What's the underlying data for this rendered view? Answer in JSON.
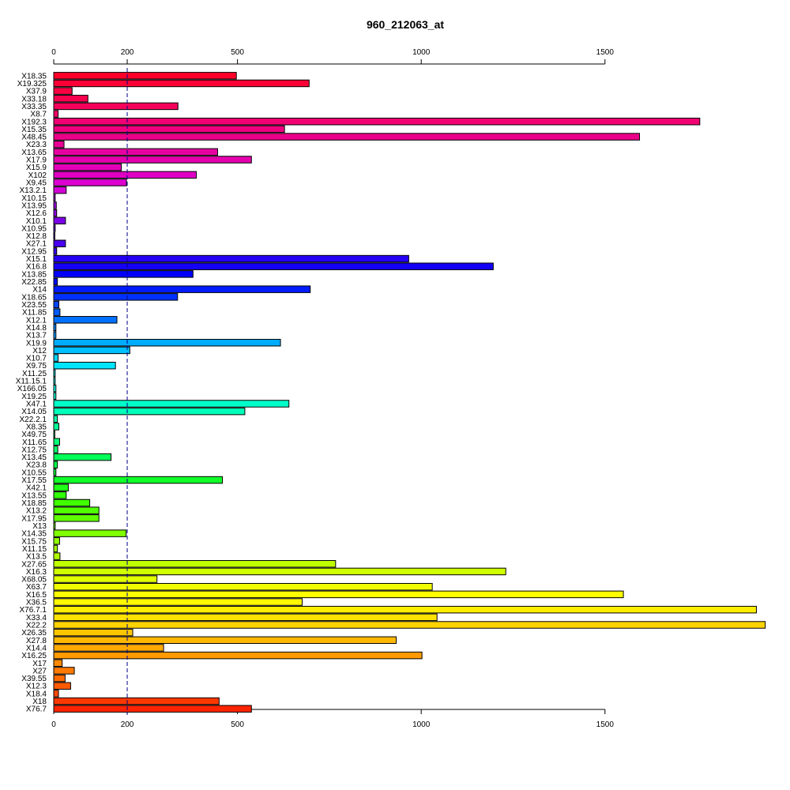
{
  "chart_data": {
    "type": "bar",
    "orientation": "horizontal",
    "title": "960_212063_at",
    "xlabel": "",
    "ylabel": "",
    "xlim": [
      0,
      1940
    ],
    "x_ticks": [
      0,
      200,
      500,
      1000,
      1500
    ],
    "reference_line": 200,
    "grid": false,
    "categories": [
      "X18.35",
      "X19.325",
      "X37.9",
      "X33.18",
      "X33.35",
      "X8.7",
      "X192.3",
      "X15.35",
      "X48.45",
      "X23.3",
      "X13.65",
      "X17.9",
      "X15.9",
      "X102",
      "X9.45",
      "X13.2.1",
      "X10.15",
      "X13.95",
      "X12.6",
      "X10.1",
      "X10.95",
      "X12.8",
      "X27.1",
      "X12.95",
      "X15.1",
      "X16.8",
      "X13.85",
      "X22.85",
      "X14",
      "X18.65",
      "X23.55",
      "X11.85",
      "X12.1",
      "X14.8",
      "X13.7",
      "X19.9",
      "X12",
      "X10.7",
      "X9.75",
      "X11.25",
      "X11.15.1",
      "X166.05",
      "X19.25",
      "X47.1",
      "X14.05",
      "X22.2.1",
      "X8.35",
      "X49.75",
      "X11.65",
      "X12.75",
      "X13.45",
      "X23.8",
      "X10.55",
      "X17.55",
      "X42.1",
      "X13.55",
      "X18.85",
      "X13.2",
      "X17.95",
      "X13",
      "X14.35",
      "X15.75",
      "X11.15",
      "X13.5",
      "X27.65",
      "X16.3",
      "X68.05",
      "X63.7",
      "X16.5",
      "X36.5",
      "X76.7.1",
      "X33.4",
      "X22.2",
      "X26.35",
      "X27.8",
      "X14.4",
      "X16.25",
      "X17",
      "X27",
      "X39.55",
      "X12.3",
      "X18.4",
      "X18",
      "X76.7"
    ],
    "values": [
      497,
      695,
      50,
      93,
      338,
      12,
      1758,
      628,
      1594,
      28,
      446,
      538,
      184,
      388,
      198,
      34,
      4,
      7,
      8,
      32,
      4,
      3,
      32,
      8,
      966,
      1196,
      379,
      10,
      698,
      337,
      14,
      17,
      172,
      6,
      6,
      617,
      207,
      12,
      168,
      4,
      4,
      6,
      6,
      640,
      520,
      10,
      14,
      3,
      16,
      11,
      156,
      10,
      6,
      459,
      40,
      34,
      98,
      123,
      123,
      4,
      197,
      16,
      10,
      17,
      767,
      1230,
      281,
      1030,
      1550,
      676,
      1912,
      1043,
      1936,
      215,
      932,
      299,
      1002,
      23,
      56,
      31,
      46,
      13,
      450,
      538
    ],
    "colors": [
      "#ff0029",
      "#fc0036",
      "#fa0042",
      "#f7004e",
      "#f5005b",
      "#f30066",
      "#f00072",
      "#ee007e",
      "#ec0089",
      "#e90095",
      "#e700a1",
      "#e400ac",
      "#e200b8",
      "#df00c4",
      "#dd00d0",
      "#d400d8",
      "#b200e0",
      "#9f00e2",
      "#8e00e4",
      "#7c00e7",
      "#6b00e9",
      "#5a00eb",
      "#4800ee",
      "#3700f0",
      "#2600f3",
      "#1400f5",
      "#0300f7",
      "#000afa",
      "#001cfc",
      "#0030ff",
      "#0046ff",
      "#005cff",
      "#0070ff",
      "#0084ff",
      "#0098ff",
      "#00acff",
      "#00c0ff",
      "#00d4ff",
      "#00e6ff",
      "#00f4ff",
      "#00fbf7",
      "#00fde8",
      "#00fed8",
      "#00ffc8",
      "#00ffb8",
      "#00ffa8",
      "#00ff98",
      "#00ff88",
      "#00ff78",
      "#00ff68",
      "#00ff58",
      "#00ff48",
      "#00ff38",
      "#10ff28",
      "#20ff18",
      "#30ff08",
      "#40ff00",
      "#50ff00",
      "#60ff00",
      "#70ff00",
      "#80ff00",
      "#90ff00",
      "#a0ff00",
      "#b0ff00",
      "#c0ff00",
      "#d0ff00",
      "#e0ff00",
      "#f0ff00",
      "#ffff00",
      "#fff800",
      "#ffee00",
      "#ffe200",
      "#ffd400",
      "#ffc600",
      "#ffb800",
      "#ffa900",
      "#ff9a00",
      "#ff8a00",
      "#ff7a00",
      "#ff6a00",
      "#ff5a00",
      "#ff4a00",
      "#ff3800",
      "#ff2400"
    ]
  }
}
